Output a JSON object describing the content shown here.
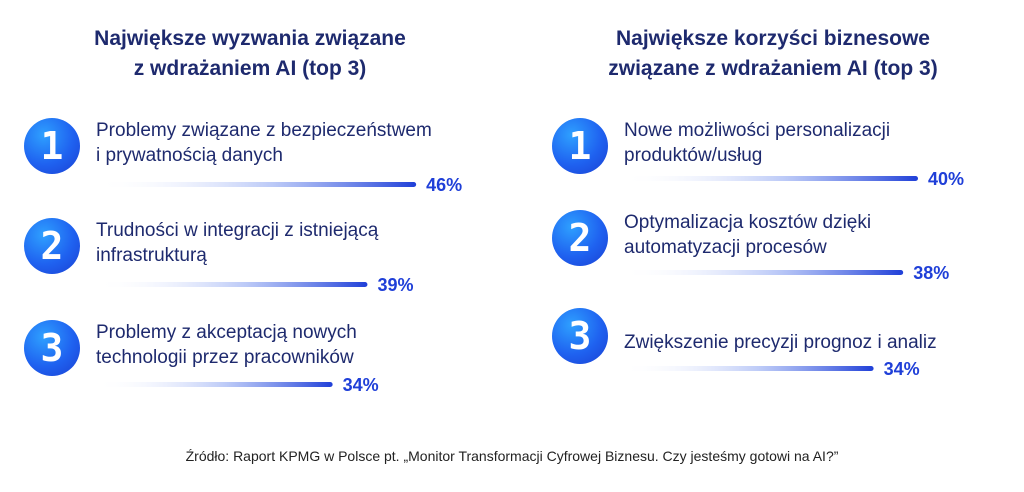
{
  "chart_data": [
    {
      "type": "bar",
      "title": "Największe wyzwania związane\nz wdrażaniem AI (top 3)",
      "categories": [
        "Problemy związane z bezpieczeństwem\ni prywatnością danych",
        "Trudności w integracji z istniejącą\ninfrastrukturą",
        "Problemy z akceptacją nowych\ntechnologii przez pracowników"
      ],
      "ranks": [
        "1",
        "2",
        "3"
      ],
      "values": [
        46,
        39,
        34
      ],
      "value_labels": [
        "46%",
        "39%",
        "34%"
      ],
      "unit": "%"
    },
    {
      "type": "bar",
      "title": "Największe korzyści biznesowe\nzwiązane z wdrażaniem AI (top 3)",
      "categories": [
        "Nowe możliwości personalizacji\nproduktów/usług",
        "Optymalizacja kosztów dzięki\nautomatyzacji procesów",
        "Zwiększenie precyzji prognoz i analiz"
      ],
      "ranks": [
        "1",
        "2",
        "3"
      ],
      "values": [
        40,
        38,
        34
      ],
      "value_labels": [
        "40%",
        "38%",
        "34%"
      ],
      "unit": "%"
    }
  ],
  "source": "Źródło: Raport KPMG w Polsce pt. „Monitor Transformacji Cyfrowej Biznesu. Czy jesteśmy gotowi na AI?”",
  "colors": {
    "title": "#1e2a6e",
    "text": "#1e2a6e",
    "bar_end": "#1f3fd8",
    "badge_start": "#2ea0ff",
    "badge_end": "#1a3fd2"
  }
}
